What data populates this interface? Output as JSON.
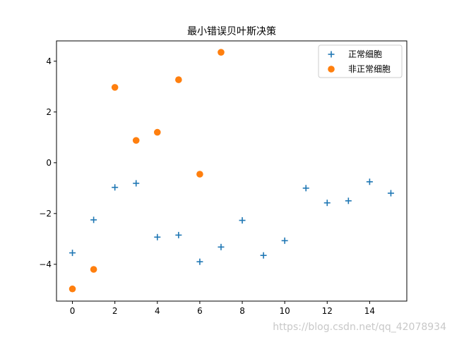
{
  "chart_data": {
    "type": "scatter",
    "title": "最小错误贝叶斯决策",
    "xlabel": "",
    "ylabel": "",
    "xlim": [
      -0.75,
      15.75
    ],
    "ylim": [
      -5.45,
      4.8
    ],
    "xticks": [
      0,
      2,
      4,
      6,
      8,
      10,
      12,
      14
    ],
    "yticks": [
      -4,
      -2,
      0,
      2,
      4
    ],
    "xtick_labels": [
      "0",
      "2",
      "4",
      "6",
      "8",
      "10",
      "12",
      "14"
    ],
    "ytick_labels": [
      "−4",
      "−2",
      "0",
      "2",
      "4"
    ],
    "grid": false,
    "legend_position": "top-right",
    "series": [
      {
        "name": "正常细胞",
        "marker": "plus",
        "color": "#1f77b4",
        "x": [
          0,
          1,
          2,
          3,
          4,
          5,
          6,
          7,
          8,
          9,
          10,
          11,
          12,
          13,
          14,
          15
        ],
        "y": [
          -3.55,
          -2.25,
          -0.97,
          -0.81,
          -2.93,
          -2.85,
          -3.9,
          -3.32,
          -2.27,
          -3.65,
          -3.07,
          -1.0,
          -1.58,
          -1.5,
          -0.75,
          -1.2
        ]
      },
      {
        "name": "非正常细胞",
        "marker": "circle",
        "color": "#ff7f0e",
        "x": [
          0,
          1,
          2,
          3,
          4,
          5,
          6,
          7
        ],
        "y": [
          -4.97,
          -4.2,
          2.97,
          0.88,
          1.2,
          3.27,
          -0.45,
          4.35
        ]
      }
    ]
  },
  "watermark": "https://blog.csdn.net/qq_42078934"
}
